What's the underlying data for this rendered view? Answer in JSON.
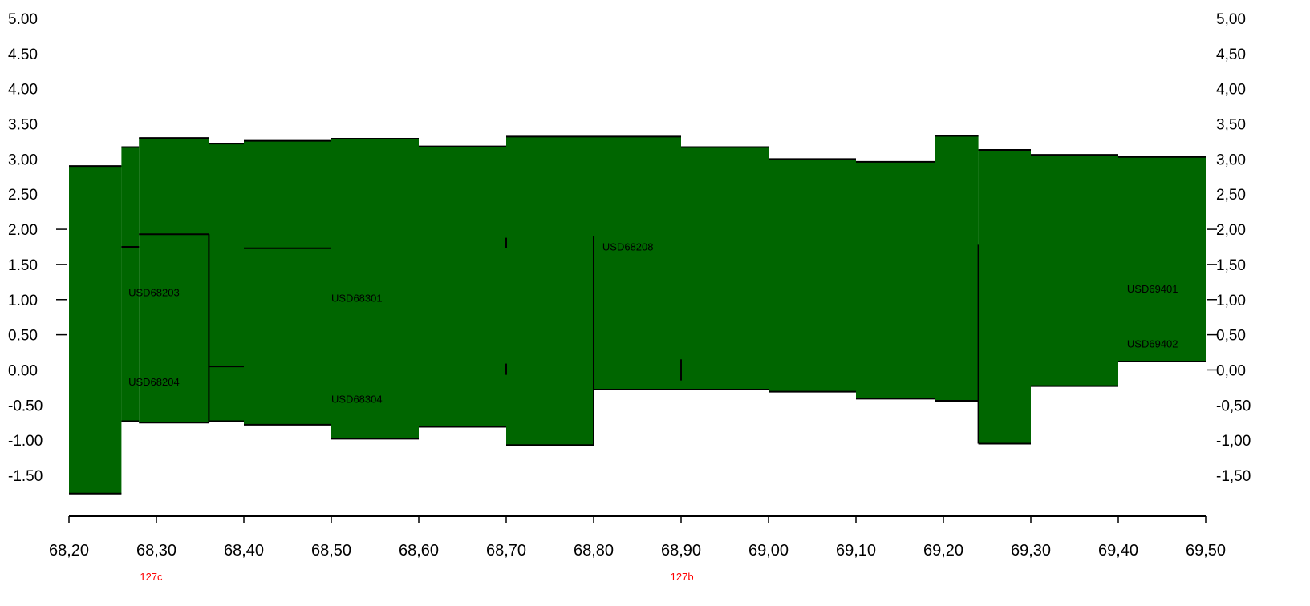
{
  "chart_data": {
    "type": "area",
    "title": "",
    "xlabel": "",
    "ylabel": "",
    "xlim": [
      68.2,
      69.5
    ],
    "ylim": [
      -1.5,
      5.0
    ],
    "grid": false,
    "fill_color": "#006600",
    "edge_color": "#000000",
    "marker_color": "#ff0000",
    "y_ticks_left": [
      "5.00",
      "4.50",
      "4.00",
      "3.50",
      "3.00",
      "2.50",
      "2.00",
      "1.50",
      "1.00",
      "0.50",
      "0.00",
      "-0.50",
      "-1.00",
      "-1.50"
    ],
    "y_ticks_right": [
      "5,00",
      "4,50",
      "4,00",
      "3,50",
      "3,00",
      "2,50",
      "2,00",
      "1,50",
      "1,00",
      "0,50",
      "0,00",
      "-0,50",
      "-1,00",
      "-1,50"
    ],
    "x_ticks": [
      "68,20",
      "68,30",
      "68,40",
      "68,50",
      "68,60",
      "68,70",
      "68,80",
      "68,90",
      "69,00",
      "69,10",
      "69,20",
      "69,30",
      "69,40",
      "69,50"
    ],
    "segments": [
      {
        "x0": 68.2,
        "x1": 68.26,
        "top": 2.9,
        "bottom": -1.76
      },
      {
        "x0": 68.26,
        "x1": 68.28,
        "top": 3.17,
        "bottom": -0.73
      },
      {
        "x0": 68.28,
        "x1": 68.36,
        "top": 3.3,
        "bottom": -0.75
      },
      {
        "x0": 68.36,
        "x1": 68.4,
        "top": 3.22,
        "bottom": -0.73
      },
      {
        "x0": 68.4,
        "x1": 68.5,
        "top": 3.26,
        "bottom": -0.78
      },
      {
        "x0": 68.5,
        "x1": 68.6,
        "top": 3.29,
        "bottom": -0.98
      },
      {
        "x0": 68.6,
        "x1": 68.7,
        "top": 3.18,
        "bottom": -0.81
      },
      {
        "x0": 68.7,
        "x1": 68.8,
        "top": 3.32,
        "bottom": -1.07
      },
      {
        "x0": 68.8,
        "x1": 68.9,
        "top": 3.32,
        "bottom": -0.28
      },
      {
        "x0": 68.9,
        "x1": 69.0,
        "top": 3.17,
        "bottom": -0.28
      },
      {
        "x0": 69.0,
        "x1": 69.1,
        "top": 3.0,
        "bottom": -0.31
      },
      {
        "x0": 69.1,
        "x1": 69.19,
        "top": 2.96,
        "bottom": -0.41
      },
      {
        "x0": 69.19,
        "x1": 69.24,
        "top": 3.33,
        "bottom": -0.44
      },
      {
        "x0": 69.24,
        "x1": 69.3,
        "top": 3.13,
        "bottom": -1.05
      },
      {
        "x0": 69.3,
        "x1": 69.4,
        "top": 3.06,
        "bottom": -0.23
      },
      {
        "x0": 69.4,
        "x1": 69.5,
        "top": 3.03,
        "bottom": 0.12
      }
    ],
    "ref_lines": [
      {
        "x0": 68.26,
        "x1": 68.28,
        "y": 1.75
      },
      {
        "x0": 68.28,
        "x1": 68.36,
        "y": 1.93
      },
      {
        "x0": 68.36,
        "x1": 68.4,
        "y": 0.05
      },
      {
        "x0": 68.4,
        "x1": 68.5,
        "y": 1.73
      }
    ],
    "vertical_lines": [
      {
        "x": 68.36,
        "y0": -0.75,
        "y1": 1.93
      },
      {
        "x": 68.7,
        "y0": 1.73,
        "y1": 1.88
      },
      {
        "x": 68.7,
        "y0": -0.07,
        "y1": 0.09
      },
      {
        "x": 68.8,
        "y0": -1.07,
        "y1": 1.9
      },
      {
        "x": 68.9,
        "y0": -0.15,
        "y1": 0.15
      },
      {
        "x": 69.24,
        "y0": -1.05,
        "y1": 1.78
      }
    ],
    "labels": [
      {
        "text": "USD68203",
        "x": 68.268,
        "y": 1.05
      },
      {
        "text": "USD68204",
        "x": 68.268,
        "y": -0.22
      },
      {
        "text": "USD68301",
        "x": 68.5,
        "y": 0.97
      },
      {
        "text": "USD68304",
        "x": 68.5,
        "y": -0.47
      },
      {
        "text": "USD68208",
        "x": 68.81,
        "y": 1.7
      },
      {
        "text": "USD69401",
        "x": 69.41,
        "y": 1.1
      },
      {
        "text": "USD69402",
        "x": 69.41,
        "y": 0.32
      }
    ],
    "markers": [
      {
        "text": "127c",
        "x": 68.294
      },
      {
        "text": "127b",
        "x": 68.901
      }
    ]
  }
}
